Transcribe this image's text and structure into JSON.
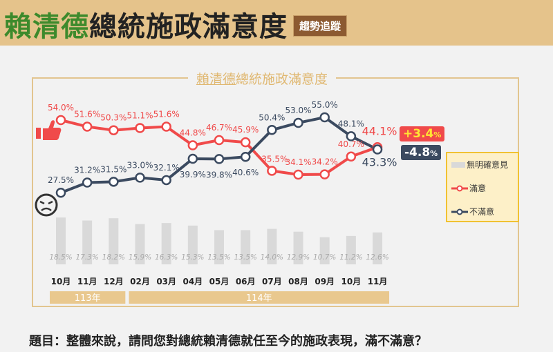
{
  "header": {
    "title_green": "賴清德",
    "title_rest": "總統施政滿意度",
    "badge": "趨勢追蹤"
  },
  "subtitle": {
    "underlined": "賴清德",
    "rest": "總統施政滿意度"
  },
  "question": "題目：整體來說，請問您對總統賴清德就任至今的施政表現，滿不滿意？",
  "colors": {
    "satisfied": "#f04a4a",
    "dissatisfied": "#3b4a60",
    "no_opinion": "#d9d9d9",
    "accent": "#e5c38b"
  },
  "icons": {
    "satisfied": "thumbs-up-icon",
    "dissatisfied": "angry-face-icon"
  },
  "chart_data": {
    "type": "line",
    "title": "賴清德總統施政滿意度",
    "categories": [
      "10月",
      "11月",
      "12月",
      "02月",
      "03月",
      "04月",
      "05月",
      "06月",
      "07月",
      "08月",
      "09月",
      "10月",
      "11月"
    ],
    "years": [
      {
        "label": "113年",
        "span": 3
      },
      {
        "label": "114年",
        "span": 10
      }
    ],
    "series": [
      {
        "name": "滿意",
        "type": "line",
        "values": [
          54.0,
          51.6,
          50.3,
          51.1,
          51.6,
          44.8,
          46.7,
          45.9,
          35.5,
          34.1,
          34.2,
          40.7,
          44.1
        ]
      },
      {
        "name": "不滿意",
        "type": "line",
        "values": [
          27.5,
          31.2,
          31.5,
          33.0,
          32.1,
          39.9,
          39.8,
          40.6,
          50.4,
          53.0,
          55.0,
          48.1,
          43.3
        ]
      },
      {
        "name": "無明確意見",
        "type": "bar",
        "values": [
          18.5,
          17.3,
          18.2,
          15.9,
          16.3,
          15.3,
          13.5,
          13.5,
          14.0,
          12.9,
          10.7,
          11.2,
          12.6
        ]
      }
    ],
    "changes": {
      "satisfied": "+3.4",
      "dissatisfied": "-4.8",
      "unit": "%"
    },
    "legend_position": "right"
  }
}
